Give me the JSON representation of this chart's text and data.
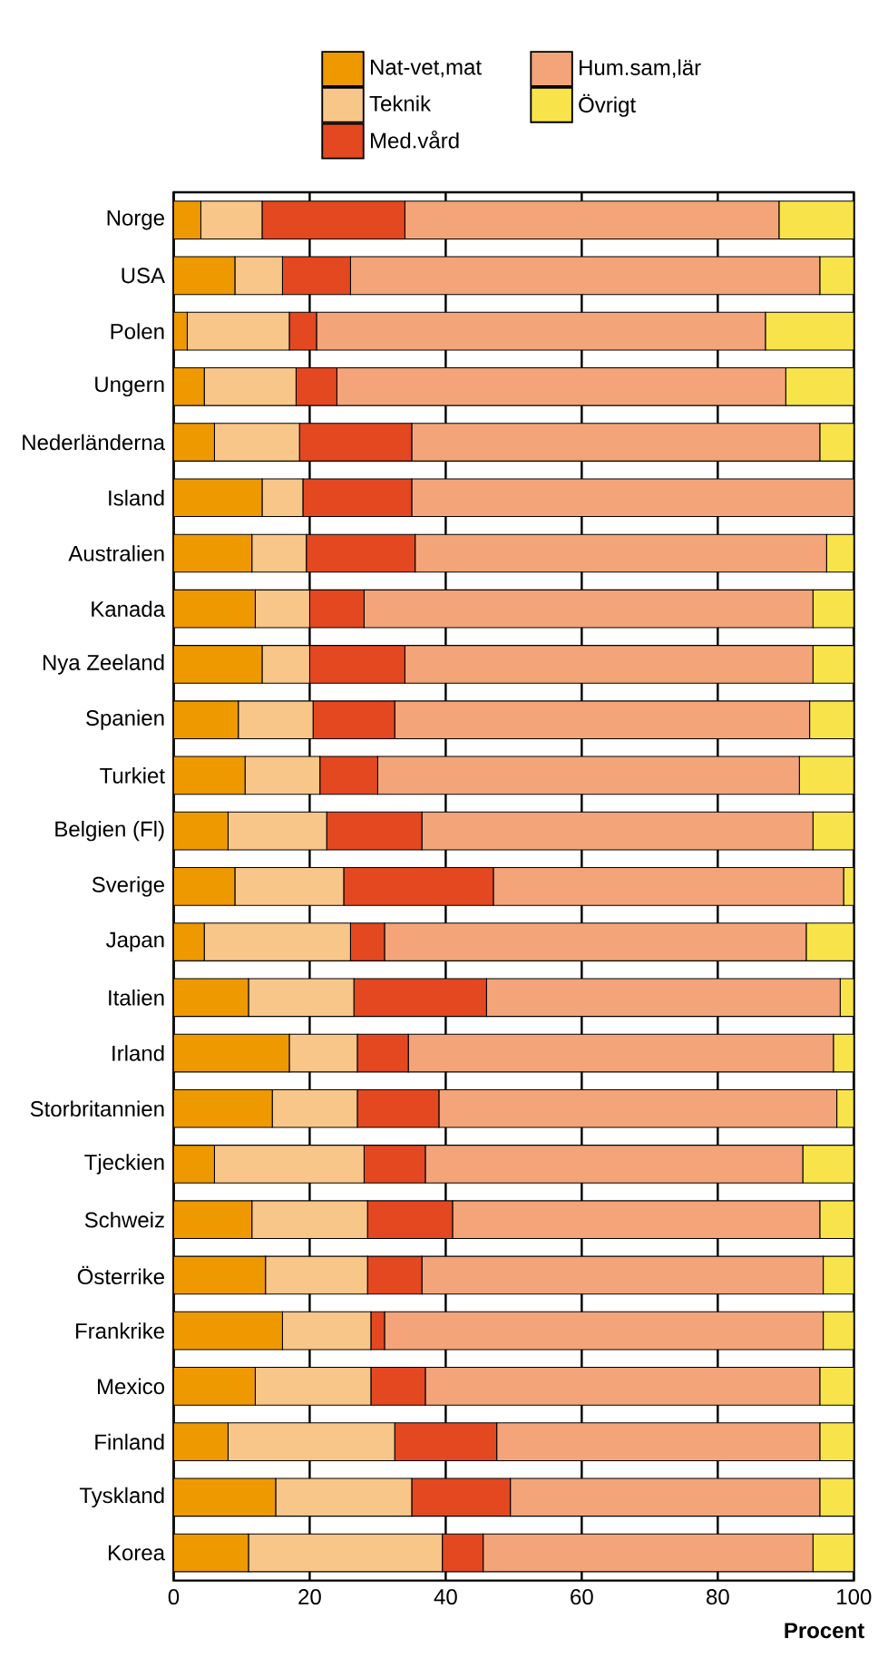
{
  "chart_data": {
    "type": "bar",
    "orientation": "horizontal",
    "stacked": true,
    "categories": [
      "Norge",
      "USA",
      "Polen",
      "Ungern",
      "Nederländerna",
      "Island",
      "Australien",
      "Kanada",
      "Nya Zeeland",
      "Spanien",
      "Turkiet",
      "Belgien (Fl)",
      "Sverige",
      "Japan",
      "Italien",
      "Irland",
      "Storbritannien",
      "Tjeckien",
      "Schweiz",
      "Österrike",
      "Frankrike",
      "Mexico",
      "Finland",
      "Tyskland",
      "Korea"
    ],
    "series": [
      {
        "name": "Nat-vet,mat",
        "color": "#ee9900",
        "values": [
          4,
          9,
          2,
          4.5,
          6,
          13,
          11.5,
          12,
          13,
          9.5,
          10.5,
          8,
          9,
          4.5,
          11,
          17,
          14.5,
          6,
          11.5,
          13.5,
          16,
          12,
          8,
          15,
          11
        ]
      },
      {
        "name": "Teknik",
        "color": "#f8c688",
        "values": [
          9,
          7,
          15,
          13.5,
          12.5,
          6,
          8,
          8,
          7,
          11,
          11,
          14.5,
          16,
          21.5,
          15.5,
          10,
          12.5,
          22,
          17,
          15,
          13,
          17,
          24.5,
          20,
          28.5
        ]
      },
      {
        "name": "Med.vård",
        "color": "#e34820",
        "values": [
          21,
          10,
          4,
          6,
          16.5,
          16,
          16,
          8,
          14,
          12,
          8.5,
          14,
          22,
          5,
          19.5,
          7.5,
          12,
          9,
          12.5,
          8,
          2,
          8,
          15,
          14.5,
          6
        ]
      },
      {
        "name": "Hum.sam,lär",
        "color": "#f3a478",
        "values": [
          55,
          69,
          66,
          66,
          60,
          65,
          60.5,
          66,
          60,
          61,
          62,
          57.5,
          51.5,
          62,
          52,
          62.5,
          58.5,
          55.5,
          54,
          59,
          64.5,
          58,
          47.5,
          45.5,
          48.5
        ]
      },
      {
        "name": "Övrigt",
        "color": "#f8e44a",
        "values": [
          11,
          5,
          13,
          10,
          5,
          0,
          4,
          6,
          6,
          6.5,
          8,
          6,
          1.5,
          7,
          2,
          3,
          2.5,
          7.5,
          5,
          4.5,
          4.5,
          5,
          5,
          5,
          6
        ]
      }
    ],
    "xlim": [
      0,
      100
    ],
    "xticks": [
      0,
      20,
      40,
      60,
      80,
      100
    ],
    "xlabel": "Procent",
    "grid": "x",
    "legend": "top"
  }
}
